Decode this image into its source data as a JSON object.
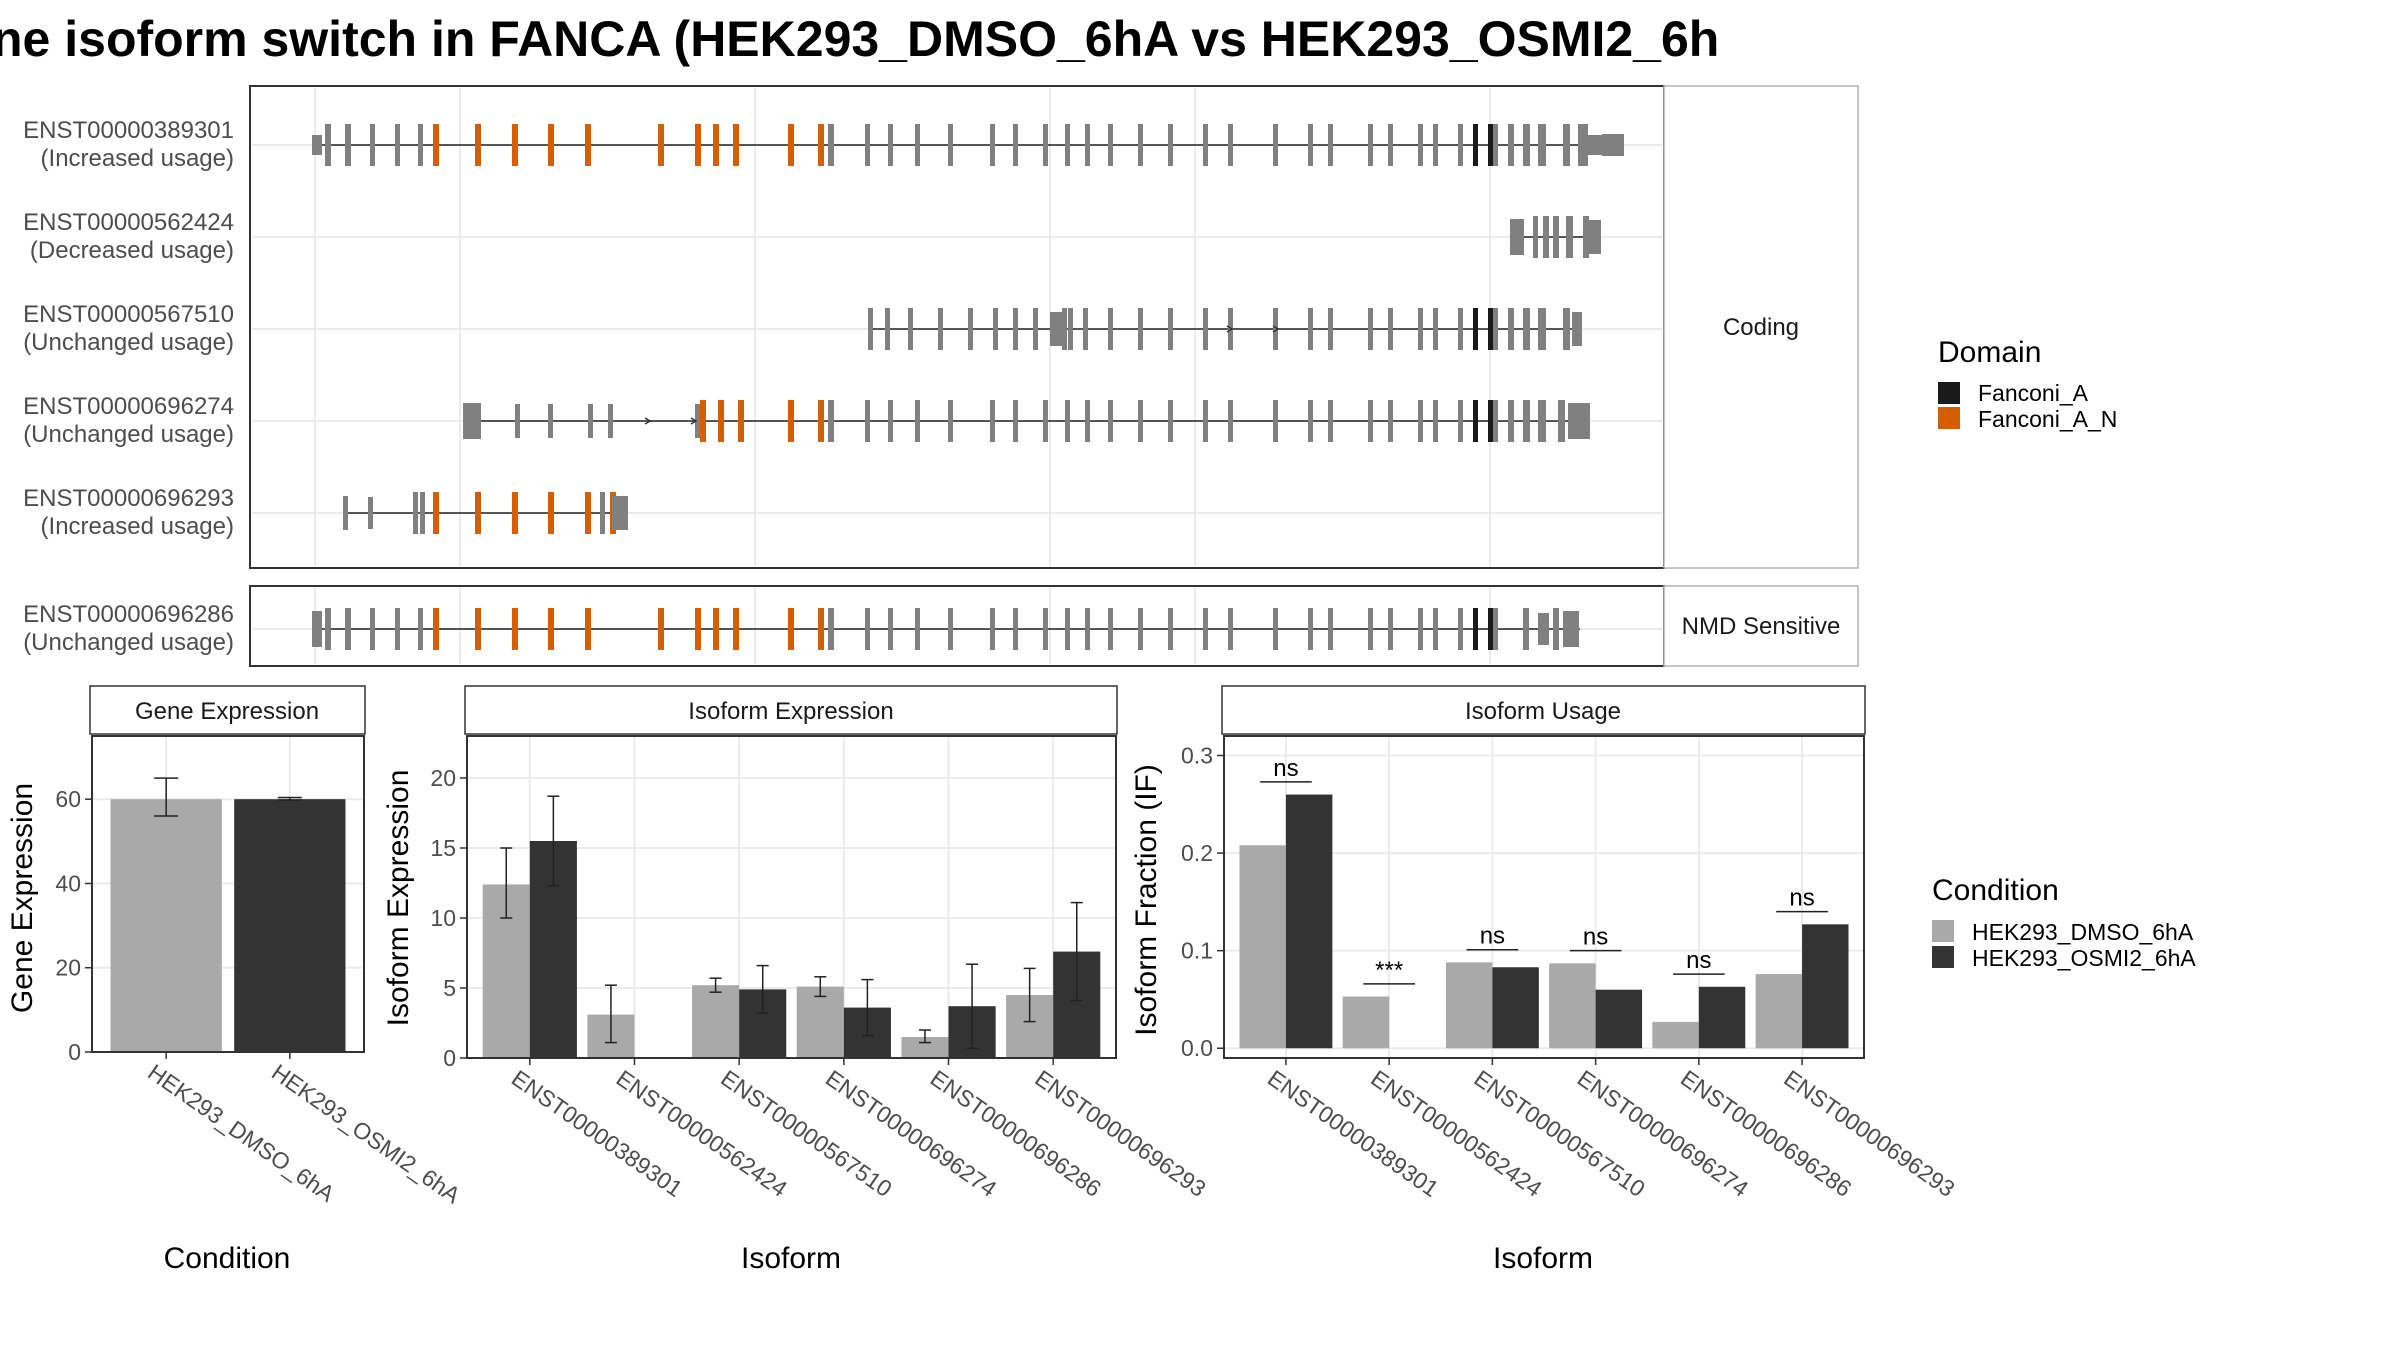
{
  "title": "ne isoform switch in FANCA (HEK293_DMSO_6hA vs HEK293_OSMI2_6h",
  "colors": {
    "fanconi_a": "#1a1a1a",
    "fanconi_a_n": "#d55e00",
    "exon": "#808080",
    "dmso": "#a9a9a9",
    "osmi2": "#333333",
    "grid": "#ebebeb",
    "strip_fill": "#ffffff",
    "border": "#333333"
  },
  "structure": {
    "groups": [
      {
        "label": "Coding",
        "isoforms": [
          {
            "id": "ENST00000389301",
            "usage": "(Increased usage)"
          },
          {
            "id": "ENST00000562424",
            "usage": "(Decreased usage)"
          },
          {
            "id": "ENST00000567510",
            "usage": "(Unchanged usage)"
          },
          {
            "id": "ENST00000696274",
            "usage": "(Unchanged usage)"
          },
          {
            "id": "ENST00000696293",
            "usage": "(Increased usage)"
          }
        ]
      },
      {
        "label": "NMD Sensitive",
        "isoforms": [
          {
            "id": "ENST00000696286",
            "usage": "(Unchanged usage)"
          }
        ]
      }
    ]
  },
  "legend_domain": {
    "title": "Domain",
    "items": [
      {
        "label": "Fanconi_A",
        "color": "#1a1a1a"
      },
      {
        "label": "Fanconi_A_N",
        "color": "#d55e00"
      }
    ]
  },
  "legend_condition": {
    "title": "Condition",
    "items": [
      {
        "label": "HEK293_DMSO_6hA",
        "color": "#a9a9a9"
      },
      {
        "label": "HEK293_OSMI2_6hA",
        "color": "#333333"
      }
    ]
  },
  "chart_data": [
    {
      "type": "bar",
      "title": "Gene Expression",
      "xlabel": "Condition",
      "ylabel": "Gene Expression",
      "ylim": [
        0,
        75
      ],
      "yticks": [
        0,
        20,
        40,
        60
      ],
      "categories": [
        "HEK293_DMSO_6hA",
        "HEK293_OSMI2_6hA"
      ],
      "values": [
        60,
        60
      ],
      "errors": [
        [
          56,
          65
        ],
        [
          59.8,
          60.4
        ]
      ]
    },
    {
      "type": "bar",
      "title": "Isoform Expression",
      "xlabel": "Isoform",
      "ylabel": "Isoform Expression",
      "ylim": [
        0,
        23
      ],
      "yticks": [
        0,
        5,
        10,
        15,
        20
      ],
      "categories": [
        "ENST00000389301",
        "ENST00000562424",
        "ENST00000567510",
        "ENST00000696274",
        "ENST00000696286",
        "ENST00000696293"
      ],
      "series": [
        {
          "name": "HEK293_DMSO_6hA",
          "values": [
            12.4,
            3.1,
            5.2,
            5.1,
            1.5,
            4.5
          ],
          "errors": [
            [
              10,
              15
            ],
            [
              1.1,
              5.2
            ],
            [
              4.7,
              5.7
            ],
            [
              4.4,
              5.8
            ],
            [
              1.1,
              2.0
            ],
            [
              2.6,
              6.4
            ]
          ]
        },
        {
          "name": "HEK293_OSMI2_6hA",
          "values": [
            15.5,
            0,
            4.9,
            3.6,
            3.7,
            7.6
          ],
          "errors": [
            [
              12.3,
              18.7
            ],
            [
              0,
              0
            ],
            [
              3.2,
              6.6
            ],
            [
              1.6,
              5.6
            ],
            [
              0.7,
              6.7
            ],
            [
              4.1,
              11.1
            ]
          ]
        }
      ]
    },
    {
      "type": "bar",
      "title": "Isoform Usage",
      "xlabel": "Isoform",
      "ylabel": "Isoform Fraction (IF)",
      "ylim": [
        -0.01,
        0.32
      ],
      "yticks": [
        0.0,
        0.1,
        0.2,
        0.3
      ],
      "ytick_labels": [
        "0.0",
        "0.1",
        "0.2",
        "0.3"
      ],
      "categories": [
        "ENST00000389301",
        "ENST00000562424",
        "ENST00000567510",
        "ENST00000696274",
        "ENST00000696286",
        "ENST00000696293"
      ],
      "series": [
        {
          "name": "HEK293_DMSO_6hA",
          "values": [
            0.208,
            0.053,
            0.088,
            0.087,
            0.027,
            0.076
          ]
        },
        {
          "name": "HEK293_OSMI2_6hA",
          "values": [
            0.26,
            0,
            0.083,
            0.06,
            0.063,
            0.127
          ]
        }
      ],
      "significance": [
        {
          "label": "ns",
          "y": 0.273
        },
        {
          "label": "***",
          "y": 0.066
        },
        {
          "label": "ns",
          "y": 0.101
        },
        {
          "label": "ns",
          "y": 0.1
        },
        {
          "label": "ns",
          "y": 0.076
        },
        {
          "label": "ns",
          "y": 0.14
        }
      ]
    }
  ]
}
